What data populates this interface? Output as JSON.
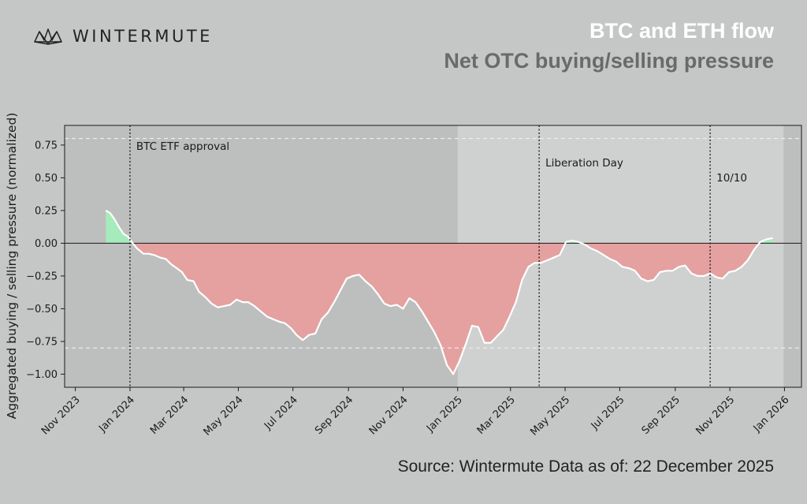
{
  "header": {
    "brand": "WINTERMUTE",
    "brand_icon": "wintermute-logo-icon",
    "title": "BTC and ETH flow",
    "subtitle": "Net OTC buying/selling pressure",
    "source": "Source: Wintermute  Data as of: 22 December 2025"
  },
  "colors": {
    "background": "#c5c7c6",
    "plot_bg": "#bdbfbe",
    "shade_band": "#cfd1d0",
    "positive_fill": "#a6ebbb",
    "negative_fill": "#e5a0a0",
    "line": "#ffffff",
    "title": "#ffffff",
    "subtitle": "#6a6a6a"
  },
  "chart_data": {
    "type": "area",
    "title": "BTC and ETH flow",
    "subtitle": "Net OTC buying/selling pressure",
    "xlabel": "",
    "ylabel": "Aggregated buying / selling pressure (normalized)",
    "ylim": [
      -1.1,
      0.9
    ],
    "yticks": [
      -1.0,
      -0.75,
      -0.5,
      -0.25,
      0.0,
      0.25,
      0.5,
      0.75
    ],
    "ytick_labels": [
      "−1.00",
      "−0.75",
      "−0.50",
      "−0.25",
      "0.00",
      "0.25",
      "0.50",
      "0.75"
    ],
    "xlim": [
      "2023-10-20",
      "2026-01-20"
    ],
    "xticks": [
      "2023-11-01",
      "2024-01-01",
      "2024-03-01",
      "2024-05-01",
      "2024-07-01",
      "2024-09-01",
      "2024-11-01",
      "2025-01-01",
      "2025-03-01",
      "2025-05-01",
      "2025-07-01",
      "2025-09-01",
      "2025-11-01",
      "2026-01-01"
    ],
    "xtick_labels": [
      "Nov 2023",
      "Jan 2024",
      "Mar 2024",
      "May 2024",
      "Jul 2024",
      "Sep 2024",
      "Nov 2024",
      "Jan 2025",
      "Mar 2025",
      "May 2025",
      "Jul 2025",
      "Sep 2025",
      "Nov 2025",
      "Jan 2026"
    ],
    "grid": false,
    "reference_lines": [
      0.8,
      -0.8
    ],
    "events": [
      {
        "date": "2024-01-01",
        "label": "BTC ETF approval"
      },
      {
        "date": "2025-04-02",
        "label": "Liberation Day"
      },
      {
        "date": "2025-10-10",
        "label": "10/10"
      }
    ],
    "series": [
      {
        "x": [
          "2023-12-05",
          "2023-12-10",
          "2023-12-15",
          "2023-12-20",
          "2023-12-25",
          "2023-12-30",
          "2024-01-04",
          "2024-01-09",
          "2024-01-16",
          "2024-01-22",
          "2024-01-28",
          "2024-02-04",
          "2024-02-10",
          "2024-02-16",
          "2024-02-22",
          "2024-02-28",
          "2024-03-05",
          "2024-03-12",
          "2024-03-18",
          "2024-03-25",
          "2024-04-01",
          "2024-04-08",
          "2024-04-15",
          "2024-04-22",
          "2024-04-29",
          "2024-05-06",
          "2024-05-12",
          "2024-05-19",
          "2024-05-26",
          "2024-06-02",
          "2024-06-09",
          "2024-06-16",
          "2024-06-22",
          "2024-06-29",
          "2024-07-05",
          "2024-07-12",
          "2024-07-19",
          "2024-07-26",
          "2024-08-02",
          "2024-08-09",
          "2024-08-16",
          "2024-08-23",
          "2024-08-30",
          "2024-09-06",
          "2024-09-13",
          "2024-09-20",
          "2024-09-27",
          "2024-10-04",
          "2024-10-11",
          "2024-10-18",
          "2024-10-25",
          "2024-11-01",
          "2024-11-08",
          "2024-11-15",
          "2024-11-22",
          "2024-11-29",
          "2024-12-06",
          "2024-12-13",
          "2024-12-20",
          "2024-12-27",
          "2025-01-03",
          "2025-01-10",
          "2025-01-17",
          "2025-01-24",
          "2025-01-31",
          "2025-02-07",
          "2025-02-14",
          "2025-02-21",
          "2025-02-28",
          "2025-03-07",
          "2025-03-14",
          "2025-03-21",
          "2025-03-28",
          "2025-04-04",
          "2025-04-11",
          "2025-04-18",
          "2025-04-25",
          "2025-05-02",
          "2025-05-09",
          "2025-05-16",
          "2025-05-23",
          "2025-05-30",
          "2025-06-06",
          "2025-06-13",
          "2025-06-20",
          "2025-06-27",
          "2025-07-04",
          "2025-07-11",
          "2025-07-18",
          "2025-07-25",
          "2025-08-01",
          "2025-08-08",
          "2025-08-15",
          "2025-08-22",
          "2025-08-29",
          "2025-09-05",
          "2025-09-12",
          "2025-09-19",
          "2025-09-26",
          "2025-10-03",
          "2025-10-10",
          "2025-10-17",
          "2025-10-24",
          "2025-10-31",
          "2025-11-07",
          "2025-11-14",
          "2025-11-21",
          "2025-11-28",
          "2025-12-05",
          "2025-12-12",
          "2025-12-19"
        ],
        "values": [
          0.25,
          0.23,
          0.18,
          0.12,
          0.07,
          0.05,
          0.0,
          -0.04,
          -0.08,
          -0.08,
          -0.09,
          -0.11,
          -0.12,
          -0.16,
          -0.19,
          -0.22,
          -0.28,
          -0.29,
          -0.37,
          -0.41,
          -0.46,
          -0.49,
          -0.48,
          -0.47,
          -0.43,
          -0.45,
          -0.45,
          -0.48,
          -0.52,
          -0.56,
          -0.58,
          -0.6,
          -0.61,
          -0.65,
          -0.7,
          -0.74,
          -0.7,
          -0.69,
          -0.58,
          -0.53,
          -0.45,
          -0.36,
          -0.27,
          -0.25,
          -0.24,
          -0.29,
          -0.33,
          -0.39,
          -0.46,
          -0.48,
          -0.47,
          -0.5,
          -0.42,
          -0.45,
          -0.52,
          -0.6,
          -0.68,
          -0.78,
          -0.93,
          -1.0,
          -0.9,
          -0.77,
          -0.63,
          -0.64,
          -0.76,
          -0.76,
          -0.71,
          -0.66,
          -0.56,
          -0.45,
          -0.28,
          -0.18,
          -0.15,
          -0.15,
          -0.13,
          -0.11,
          -0.09,
          0.01,
          0.02,
          0.01,
          -0.01,
          -0.04,
          -0.06,
          -0.09,
          -0.12,
          -0.14,
          -0.18,
          -0.19,
          -0.21,
          -0.27,
          -0.29,
          -0.28,
          -0.22,
          -0.21,
          -0.21,
          -0.18,
          -0.17,
          -0.23,
          -0.25,
          -0.25,
          -0.23,
          -0.26,
          -0.27,
          -0.22,
          -0.21,
          -0.18,
          -0.13,
          -0.05,
          0.01,
          0.03,
          0.04
        ]
      }
    ]
  }
}
